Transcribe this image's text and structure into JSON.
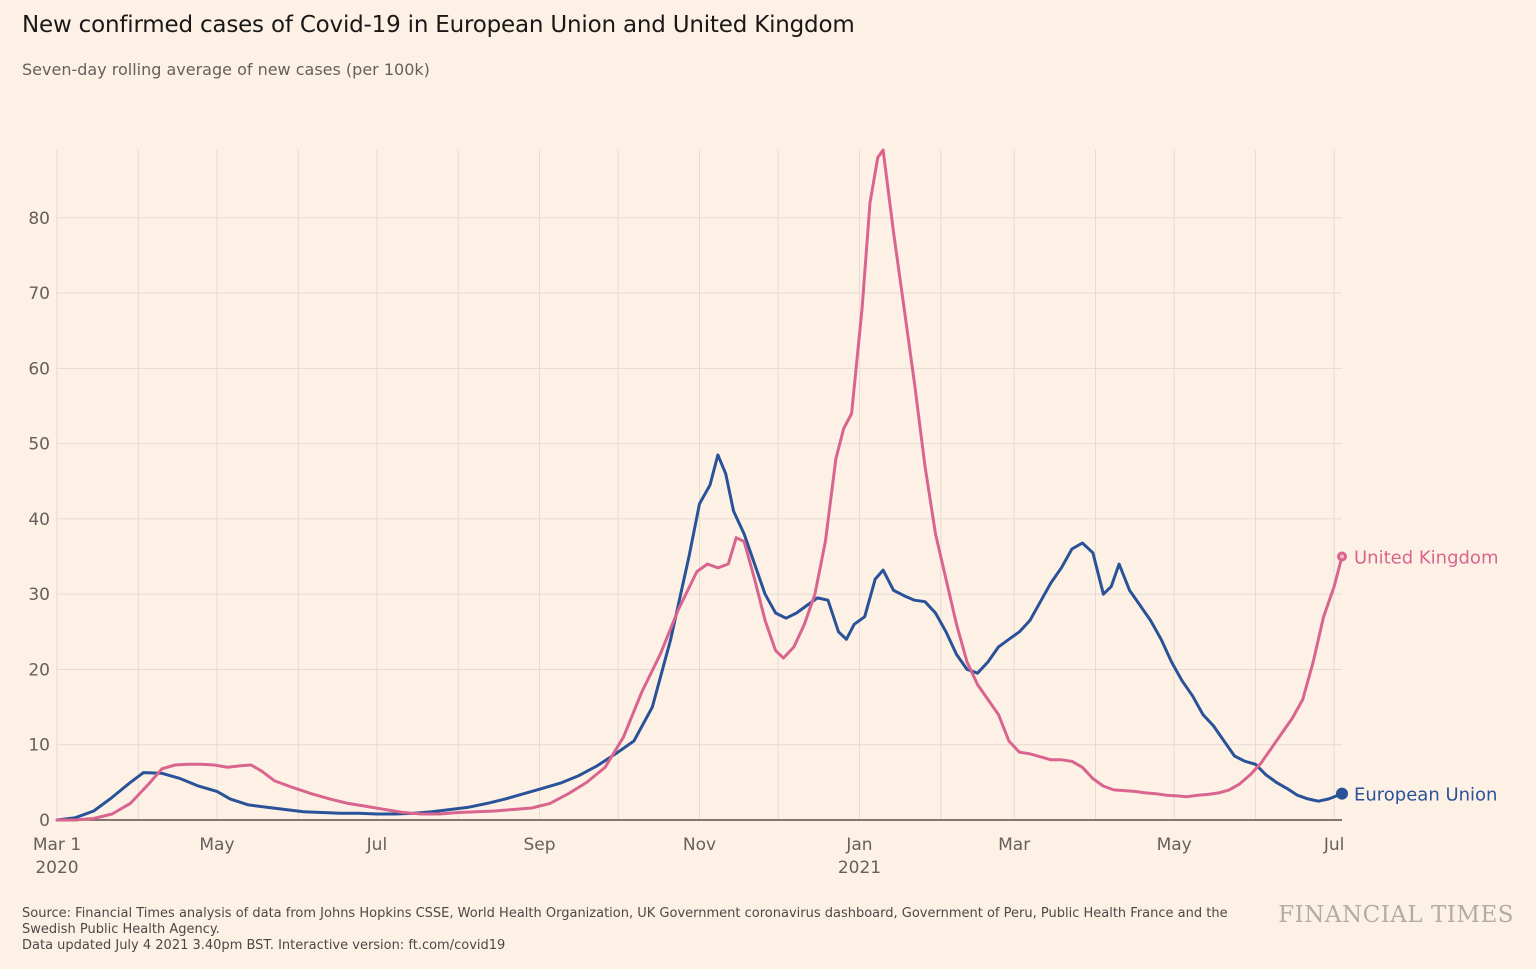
{
  "header": {
    "title": "New confirmed cases of Covid-19 in European Union and United Kingdom",
    "subtitle": "Seven-day rolling average of new cases (per 100k)"
  },
  "footer": {
    "source_line1": "Source: Financial Times analysis of data from Johns Hopkins CSSE, World Health Organization, UK Government coronavirus dashboard, Government of Peru, Public Health France and the Swedish Public Health Agency.",
    "source_line2": "Data updated July 4 2021 3.40pm BST. Interactive version: ft.com/covid19",
    "logo": "FINANCIAL TIMES"
  },
  "colors": {
    "background": "#fdf1e6",
    "grid": "#e6dbd1",
    "eu": "#2a5298",
    "uk": "#d9658f"
  },
  "chart_data": {
    "type": "line",
    "title": "New confirmed cases of Covid-19 in European Union and United Kingdom",
    "subtitle": "Seven-day rolling average of new cases (per 100k)",
    "xlim": [
      "2020-03-01",
      "2021-07-04"
    ],
    "ylim": [
      0,
      89
    ],
    "y_ticks": [
      0,
      10,
      20,
      30,
      40,
      50,
      60,
      70,
      80
    ],
    "x_ticks": [
      {
        "date": "2020-03-01",
        "label": "Mar 1",
        "year": "2020"
      },
      {
        "date": "2020-05-01",
        "label": "May",
        "year": ""
      },
      {
        "date": "2020-07-01",
        "label": "Jul",
        "year": ""
      },
      {
        "date": "2020-09-01",
        "label": "Sep",
        "year": ""
      },
      {
        "date": "2020-11-01",
        "label": "Nov",
        "year": ""
      },
      {
        "date": "2021-01-01",
        "label": "Jan",
        "year": "2021"
      },
      {
        "date": "2021-03-01",
        "label": "Mar",
        "year": ""
      },
      {
        "date": "2021-05-01",
        "label": "May",
        "year": ""
      },
      {
        "date": "2021-07-01",
        "label": "Jul",
        "year": ""
      }
    ],
    "x_gridlines": [
      "2020-03-01",
      "2020-04-01",
      "2020-05-01",
      "2020-06-01",
      "2020-07-01",
      "2020-08-01",
      "2020-09-01",
      "2020-10-01",
      "2020-11-01",
      "2020-12-01",
      "2021-01-01",
      "2021-02-01",
      "2021-03-01",
      "2021-04-01",
      "2021-05-01",
      "2021-06-01",
      "2021-07-01"
    ],
    "grid": true,
    "legend": "direct labels at line ends",
    "series": [
      {
        "name": "European Union",
        "color": "#2a5298",
        "points": [
          [
            "2020-03-01",
            0
          ],
          [
            "2020-03-08",
            0.3
          ],
          [
            "2020-03-15",
            1.2
          ],
          [
            "2020-03-22",
            3
          ],
          [
            "2020-03-29",
            5
          ],
          [
            "2020-04-03",
            6.3
          ],
          [
            "2020-04-10",
            6.2
          ],
          [
            "2020-04-17",
            5.5
          ],
          [
            "2020-04-24",
            4.5
          ],
          [
            "2020-05-01",
            3.8
          ],
          [
            "2020-05-06",
            2.8
          ],
          [
            "2020-05-13",
            2
          ],
          [
            "2020-05-20",
            1.7
          ],
          [
            "2020-05-27",
            1.4
          ],
          [
            "2020-06-03",
            1.1
          ],
          [
            "2020-06-10",
            1
          ],
          [
            "2020-06-17",
            0.9
          ],
          [
            "2020-06-24",
            0.9
          ],
          [
            "2020-07-01",
            0.8
          ],
          [
            "2020-07-08",
            0.8
          ],
          [
            "2020-07-15",
            0.9
          ],
          [
            "2020-07-22",
            1.1
          ],
          [
            "2020-07-29",
            1.4
          ],
          [
            "2020-08-05",
            1.7
          ],
          [
            "2020-08-12",
            2.2
          ],
          [
            "2020-08-19",
            2.8
          ],
          [
            "2020-08-26",
            3.5
          ],
          [
            "2020-09-02",
            4.2
          ],
          [
            "2020-09-09",
            4.9
          ],
          [
            "2020-09-16",
            5.9
          ],
          [
            "2020-09-23",
            7.2
          ],
          [
            "2020-09-30",
            8.8
          ],
          [
            "2020-10-07",
            10.5
          ],
          [
            "2020-10-14",
            15
          ],
          [
            "2020-10-21",
            24
          ],
          [
            "2020-10-28",
            35
          ],
          [
            "2020-11-01",
            42
          ],
          [
            "2020-11-05",
            44.5
          ],
          [
            "2020-11-08",
            48.5
          ],
          [
            "2020-11-11",
            46
          ],
          [
            "2020-11-14",
            41
          ],
          [
            "2020-11-18",
            38
          ],
          [
            "2020-11-22",
            34
          ],
          [
            "2020-11-26",
            30
          ],
          [
            "2020-11-30",
            27.5
          ],
          [
            "2020-12-04",
            26.8
          ],
          [
            "2020-12-08",
            27.5
          ],
          [
            "2020-12-12",
            28.5
          ],
          [
            "2020-12-16",
            29.5
          ],
          [
            "2020-12-20",
            29.2
          ],
          [
            "2020-12-24",
            25
          ],
          [
            "2020-12-27",
            24
          ],
          [
            "2020-12-30",
            26
          ],
          [
            "2021-01-03",
            27
          ],
          [
            "2021-01-07",
            32
          ],
          [
            "2021-01-10",
            33.2
          ],
          [
            "2021-01-14",
            30.5
          ],
          [
            "2021-01-18",
            29.8
          ],
          [
            "2021-01-22",
            29.2
          ],
          [
            "2021-01-26",
            29
          ],
          [
            "2021-01-30",
            27.5
          ],
          [
            "2021-02-03",
            25
          ],
          [
            "2021-02-07",
            22
          ],
          [
            "2021-02-11",
            20
          ],
          [
            "2021-02-15",
            19.5
          ],
          [
            "2021-02-19",
            21
          ],
          [
            "2021-02-23",
            23
          ],
          [
            "2021-02-27",
            24
          ],
          [
            "2021-03-03",
            25
          ],
          [
            "2021-03-07",
            26.5
          ],
          [
            "2021-03-11",
            29
          ],
          [
            "2021-03-15",
            31.5
          ],
          [
            "2021-03-19",
            33.5
          ],
          [
            "2021-03-23",
            36
          ],
          [
            "2021-03-27",
            36.8
          ],
          [
            "2021-03-31",
            35.5
          ],
          [
            "2021-04-04",
            30
          ],
          [
            "2021-04-07",
            31
          ],
          [
            "2021-04-10",
            34
          ],
          [
            "2021-04-14",
            30.5
          ],
          [
            "2021-04-18",
            28.5
          ],
          [
            "2021-04-22",
            26.5
          ],
          [
            "2021-04-26",
            24
          ],
          [
            "2021-04-30",
            21
          ],
          [
            "2021-05-04",
            18.5
          ],
          [
            "2021-05-08",
            16.5
          ],
          [
            "2021-05-12",
            14
          ],
          [
            "2021-05-16",
            12.5
          ],
          [
            "2021-05-20",
            10.5
          ],
          [
            "2021-05-24",
            8.5
          ],
          [
            "2021-05-28",
            7.8
          ],
          [
            "2021-06-01",
            7.4
          ],
          [
            "2021-06-05",
            6
          ],
          [
            "2021-06-09",
            5
          ],
          [
            "2021-06-13",
            4.2
          ],
          [
            "2021-06-17",
            3.3
          ],
          [
            "2021-06-21",
            2.8
          ],
          [
            "2021-06-25",
            2.5
          ],
          [
            "2021-06-29",
            2.8
          ],
          [
            "2021-07-04",
            3.5
          ]
        ]
      },
      {
        "name": "United Kingdom",
        "color": "#d9658f",
        "points": [
          [
            "2020-03-01",
            0
          ],
          [
            "2020-03-08",
            0
          ],
          [
            "2020-03-15",
            0.2
          ],
          [
            "2020-03-22",
            0.8
          ],
          [
            "2020-03-29",
            2.2
          ],
          [
            "2020-04-05",
            4.8
          ],
          [
            "2020-04-10",
            6.8
          ],
          [
            "2020-04-15",
            7.3
          ],
          [
            "2020-04-20",
            7.4
          ],
          [
            "2020-04-25",
            7.4
          ],
          [
            "2020-04-30",
            7.3
          ],
          [
            "2020-05-05",
            7
          ],
          [
            "2020-05-10",
            7.2
          ],
          [
            "2020-05-14",
            7.3
          ],
          [
            "2020-05-18",
            6.5
          ],
          [
            "2020-05-23",
            5.2
          ],
          [
            "2020-05-30",
            4.3
          ],
          [
            "2020-06-06",
            3.5
          ],
          [
            "2020-06-13",
            2.8
          ],
          [
            "2020-06-20",
            2.2
          ],
          [
            "2020-06-27",
            1.8
          ],
          [
            "2020-07-04",
            1.4
          ],
          [
            "2020-07-11",
            1
          ],
          [
            "2020-07-18",
            0.8
          ],
          [
            "2020-07-25",
            0.8
          ],
          [
            "2020-08-01",
            1
          ],
          [
            "2020-08-08",
            1.1
          ],
          [
            "2020-08-15",
            1.2
          ],
          [
            "2020-08-22",
            1.4
          ],
          [
            "2020-08-29",
            1.6
          ],
          [
            "2020-09-05",
            2.2
          ],
          [
            "2020-09-12",
            3.5
          ],
          [
            "2020-09-19",
            5
          ],
          [
            "2020-09-26",
            7
          ],
          [
            "2020-10-03",
            11
          ],
          [
            "2020-10-10",
            17
          ],
          [
            "2020-10-17",
            22
          ],
          [
            "2020-10-24",
            28
          ],
          [
            "2020-10-31",
            33
          ],
          [
            "2020-11-04",
            34
          ],
          [
            "2020-11-08",
            33.5
          ],
          [
            "2020-11-12",
            34
          ],
          [
            "2020-11-15",
            37.5
          ],
          [
            "2020-11-18",
            37
          ],
          [
            "2020-11-22",
            32
          ],
          [
            "2020-11-26",
            26.5
          ],
          [
            "2020-11-30",
            22.5
          ],
          [
            "2020-12-03",
            21.5
          ],
          [
            "2020-12-07",
            23
          ],
          [
            "2020-12-11",
            26
          ],
          [
            "2020-12-15",
            30
          ],
          [
            "2020-12-19",
            37
          ],
          [
            "2020-12-23",
            48
          ],
          [
            "2020-12-26",
            52
          ],
          [
            "2020-12-29",
            54
          ],
          [
            "2021-01-02",
            68
          ],
          [
            "2021-01-05",
            82
          ],
          [
            "2021-01-08",
            88
          ],
          [
            "2021-01-10",
            89
          ],
          [
            "2021-01-14",
            78
          ],
          [
            "2021-01-18",
            68
          ],
          [
            "2021-01-22",
            58
          ],
          [
            "2021-01-26",
            47
          ],
          [
            "2021-01-30",
            38
          ],
          [
            "2021-02-03",
            32
          ],
          [
            "2021-02-07",
            26
          ],
          [
            "2021-02-11",
            21
          ],
          [
            "2021-02-15",
            18
          ],
          [
            "2021-02-19",
            16
          ],
          [
            "2021-02-23",
            14
          ],
          [
            "2021-02-27",
            10.5
          ],
          [
            "2021-03-03",
            9
          ],
          [
            "2021-03-07",
            8.8
          ],
          [
            "2021-03-11",
            8.4
          ],
          [
            "2021-03-15",
            8
          ],
          [
            "2021-03-19",
            8
          ],
          [
            "2021-03-23",
            7.8
          ],
          [
            "2021-03-27",
            7
          ],
          [
            "2021-03-31",
            5.5
          ],
          [
            "2021-04-04",
            4.5
          ],
          [
            "2021-04-08",
            4
          ],
          [
            "2021-04-12",
            3.9
          ],
          [
            "2021-04-16",
            3.8
          ],
          [
            "2021-04-20",
            3.6
          ],
          [
            "2021-04-24",
            3.5
          ],
          [
            "2021-04-28",
            3.3
          ],
          [
            "2021-05-02",
            3.2
          ],
          [
            "2021-05-06",
            3.1
          ],
          [
            "2021-05-10",
            3.3
          ],
          [
            "2021-05-14",
            3.4
          ],
          [
            "2021-05-18",
            3.6
          ],
          [
            "2021-05-22",
            4
          ],
          [
            "2021-05-26",
            4.8
          ],
          [
            "2021-05-30",
            6
          ],
          [
            "2021-06-03",
            7.5
          ],
          [
            "2021-06-07",
            9.5
          ],
          [
            "2021-06-11",
            11.5
          ],
          [
            "2021-06-15",
            13.5
          ],
          [
            "2021-06-19",
            16
          ],
          [
            "2021-06-23",
            21
          ],
          [
            "2021-06-27",
            27
          ],
          [
            "2021-07-01",
            31
          ],
          [
            "2021-07-04",
            35
          ]
        ]
      }
    ]
  }
}
